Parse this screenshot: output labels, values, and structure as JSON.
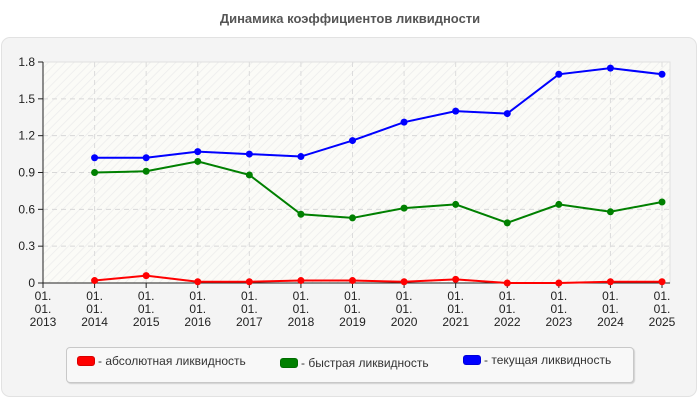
{
  "title": "Динамика коэффициентов ликвидности",
  "chart_data": {
    "type": "line",
    "title": "Динамика коэффициентов ликвидности",
    "xlabel": "",
    "ylabel": "",
    "ylim": [
      0,
      1.8
    ],
    "yticks": [
      "0",
      "0.3",
      "0.6",
      "0.9",
      "1.2",
      "1.5",
      "1.8"
    ],
    "categories": [
      "01.01.2013",
      "01.01.2014",
      "01.01.2015",
      "01.01.2016",
      "01.01.2017",
      "01.01.2018",
      "01.01.2019",
      "01.01.2020",
      "01.01.2021",
      "01.01.2022",
      "01.01.2023",
      "01.01.2024",
      "01.01.2025"
    ],
    "grid": true,
    "legend_position": "bottom",
    "series": [
      {
        "name": "абсолютная ликвидность",
        "color": "#ff0000",
        "values": [
          null,
          0.02,
          0.06,
          0.01,
          0.01,
          0.02,
          0.02,
          0.01,
          0.03,
          0.0,
          0.0,
          0.01,
          0.01
        ]
      },
      {
        "name": "быстрая ликвидность",
        "color": "#008000",
        "values": [
          null,
          0.9,
          0.91,
          0.99,
          0.88,
          0.56,
          0.53,
          0.61,
          0.64,
          0.49,
          0.64,
          0.58,
          0.66
        ]
      },
      {
        "name": "текущая ликвидность",
        "color": "#0000ff",
        "values": [
          null,
          1.02,
          1.02,
          1.07,
          1.05,
          1.03,
          1.16,
          1.31,
          1.4,
          1.38,
          1.7,
          1.75,
          1.7
        ]
      }
    ]
  },
  "legend": {
    "items": [
      {
        "label": "- абсолютная ликвидность",
        "color": "#ff0000"
      },
      {
        "label": "- быстрая ликвидность",
        "color": "#008000"
      },
      {
        "label": "- текущая ликвидность",
        "color": "#0000ff"
      }
    ]
  }
}
